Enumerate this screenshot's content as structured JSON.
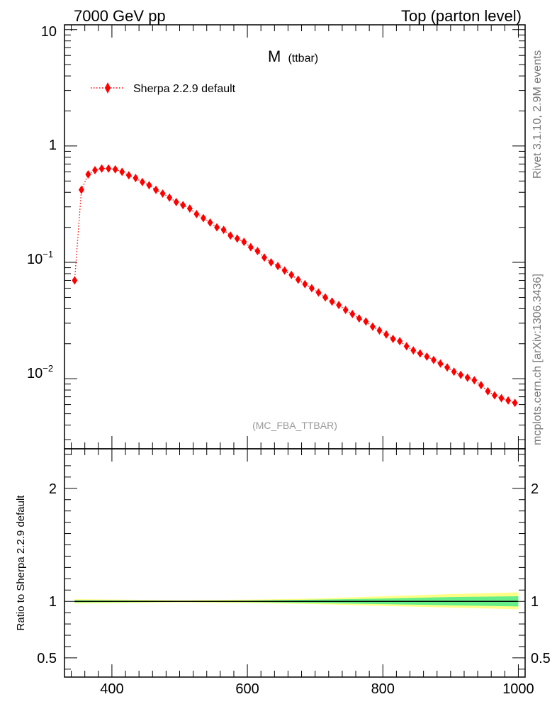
{
  "header": {
    "left": "7000 GeV pp",
    "right": "Top (parton level)"
  },
  "side_labels": {
    "rivet": "Rivet 3.1.10,  2.9M events",
    "mcplots": "mcplots.cern.ch [arXiv:1306.3436]"
  },
  "plot_title_main": "M",
  "plot_title_sub": "(ttbar)",
  "analysis_tag": "(MC_FBA_TTBAR)",
  "legend": {
    "label": "Sherpa 2.2.9 default"
  },
  "ratio_ylabel": "Ratio to Sherpa 2.2.9 default",
  "colors": {
    "series": "#ff0000",
    "band_outer": "#ffff88",
    "band_inner": "#66ee88",
    "reference_line": "#000000"
  },
  "chart_data": [
    {
      "type": "line",
      "panel": "main",
      "log_y": true,
      "xlim": [
        330,
        1010
      ],
      "ylim": [
        0.0025,
        11
      ],
      "y_tick_labels": [
        "10",
        "1",
        "10−1",
        "10−2"
      ],
      "series": [
        {
          "name": "Sherpa 2.2.9 default",
          "marker": "diamond",
          "line_style": "dotted",
          "x": [
            345,
            355,
            365,
            375,
            385,
            395,
            405,
            415,
            425,
            435,
            445,
            455,
            465,
            475,
            485,
            495,
            505,
            515,
            525,
            535,
            545,
            555,
            565,
            575,
            585,
            595,
            605,
            615,
            625,
            635,
            645,
            655,
            665,
            675,
            685,
            695,
            705,
            715,
            725,
            735,
            745,
            755,
            765,
            775,
            785,
            795,
            805,
            815,
            825,
            835,
            845,
            855,
            865,
            875,
            885,
            895,
            905,
            915,
            925,
            935,
            945,
            955,
            965,
            975,
            985,
            995
          ],
          "y": [
            0.07,
            0.42,
            0.57,
            0.62,
            0.64,
            0.64,
            0.63,
            0.6,
            0.56,
            0.53,
            0.49,
            0.46,
            0.42,
            0.39,
            0.36,
            0.33,
            0.31,
            0.29,
            0.26,
            0.24,
            0.22,
            0.2,
            0.19,
            0.17,
            0.16,
            0.15,
            0.135,
            0.125,
            0.11,
            0.1,
            0.093,
            0.085,
            0.078,
            0.071,
            0.065,
            0.06,
            0.055,
            0.05,
            0.046,
            0.043,
            0.039,
            0.036,
            0.033,
            0.031,
            0.028,
            0.026,
            0.024,
            0.022,
            0.021,
            0.019,
            0.0175,
            0.0165,
            0.0155,
            0.0145,
            0.0135,
            0.0125,
            0.0115,
            0.0108,
            0.0102,
            0.0097,
            0.0088,
            0.0078,
            0.0072,
            0.0068,
            0.0065,
            0.0062
          ]
        }
      ]
    },
    {
      "type": "area",
      "panel": "ratio",
      "xlim": [
        330,
        1010
      ],
      "ylim": [
        0.33,
        2.35
      ],
      "y_ticks": [
        0.5,
        1,
        2
      ],
      "x_ticks": [
        400,
        600,
        800,
        1000
      ],
      "reference_value": 1,
      "band_x": [
        345,
        500,
        600,
        700,
        800,
        900,
        1000
      ],
      "outer_band": {
        "low": [
          0.98,
          0.99,
          0.985,
          0.975,
          0.96,
          0.945,
          0.93
        ],
        "high": [
          1.02,
          1.01,
          1.015,
          1.025,
          1.045,
          1.065,
          1.08
        ]
      },
      "inner_band": {
        "low": [
          0.99,
          0.995,
          0.993,
          0.985,
          0.975,
          0.965,
          0.955
        ],
        "high": [
          1.01,
          1.005,
          1.007,
          1.015,
          1.025,
          1.038,
          1.045
        ]
      }
    }
  ]
}
